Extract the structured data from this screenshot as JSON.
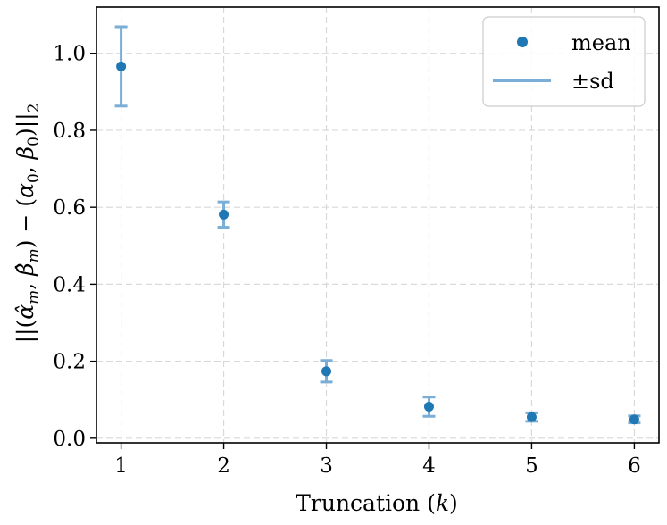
{
  "chart_data": {
    "type": "scatter",
    "xlabel": "Truncation (k)",
    "ylabel": "||(α̂_m, β̂_m) − (α_0, β_0)||_2",
    "x": [
      1,
      2,
      3,
      4,
      5,
      6
    ],
    "series": [
      {
        "name": "mean",
        "values": [
          0.966,
          0.581,
          0.174,
          0.082,
          0.055,
          0.049
        ],
        "sd": [
          0.103,
          0.033,
          0.028,
          0.025,
          0.011,
          0.009
        ]
      }
    ],
    "legend": [
      {
        "label": "mean",
        "marker": "dot"
      },
      {
        "label": "±sd",
        "marker": "line"
      }
    ],
    "xticks": [
      "1",
      "2",
      "3",
      "4",
      "5",
      "6"
    ],
    "yticks": [
      "0.0",
      "0.2",
      "0.4",
      "0.6",
      "0.8",
      "1.0"
    ],
    "xlim": [
      0.76,
      6.24
    ],
    "ylim": [
      -0.012,
      1.12
    ],
    "grid": true,
    "legend_position": "top-right",
    "colors": {
      "mean": "#1f77b4",
      "sd": "#7aaed6",
      "grid": "#d9d9d9"
    }
  }
}
